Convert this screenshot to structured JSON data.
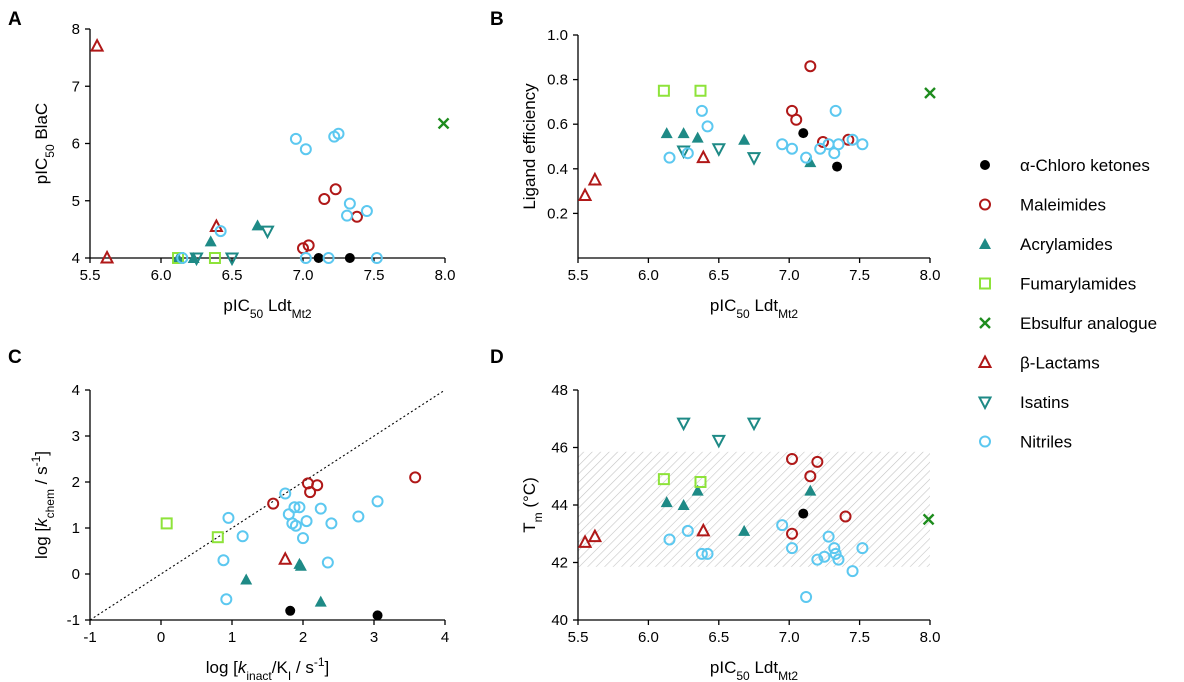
{
  "colors": {
    "chloro": "#000000",
    "maleimide": "#b01818",
    "acrylamide": "#1e8a86",
    "fumarylamide": "#8ee33a",
    "ebsulfur": "#1e8c1e",
    "lactam": "#b01818",
    "isatin": "#1e8a86",
    "nitrile": "#5cc8f0",
    "hatch": "#bdbdbd"
  },
  "legend": [
    {
      "key": "chloro",
      "label": "α-Chloro ketones",
      "marker": "filled-circle"
    },
    {
      "key": "maleimide",
      "label": "Maleimides",
      "marker": "open-circle"
    },
    {
      "key": "acrylamide",
      "label": "Acrylamides",
      "marker": "filled-triangle"
    },
    {
      "key": "fumarylamide",
      "label": "Fumarylamides",
      "marker": "open-square"
    },
    {
      "key": "ebsulfur",
      "label": "Ebsulfur analogue",
      "marker": "cross"
    },
    {
      "key": "lactam",
      "label": "β-Lactams",
      "marker": "open-triangle"
    },
    {
      "key": "isatin",
      "label": "Isatins",
      "marker": "open-triangle-down"
    },
    {
      "key": "nitrile",
      "label": "Nitriles",
      "marker": "open-circle"
    }
  ],
  "chart_data": [
    {
      "panel": "A",
      "type": "scatter",
      "xlabel_parts": [
        "pIC",
        "50",
        " Ldt",
        "Mt2"
      ],
      "ylabel_parts": [
        "pIC",
        "50",
        " BlaC"
      ],
      "xlim": [
        5.5,
        8.0
      ],
      "ylim": [
        4,
        8
      ],
      "xticks": [
        "5.5",
        "6.0",
        "6.5",
        "7.0",
        "7.5",
        "8.0"
      ],
      "yticks": [
        "4",
        "5",
        "6",
        "7",
        "8"
      ],
      "shaded_band": null,
      "diagonal": false,
      "series": [
        {
          "key": "chloro",
          "points": [
            [
              7.11,
              4.0
            ],
            [
              7.33,
              4.0
            ]
          ]
        },
        {
          "key": "maleimide",
          "points": [
            [
              7.15,
              5.03
            ],
            [
              7.23,
              5.2
            ],
            [
              7.38,
              4.72
            ],
            [
              7.0,
              4.17
            ],
            [
              7.04,
              4.22
            ]
          ]
        },
        {
          "key": "acrylamide",
          "points": [
            [
              6.12,
              4.0
            ],
            [
              6.23,
              4.0
            ],
            [
              6.35,
              4.29
            ],
            [
              6.68,
              4.57
            ]
          ]
        },
        {
          "key": "fumarylamide",
          "points": [
            [
              6.12,
              4.0
            ],
            [
              6.38,
              4.0
            ]
          ]
        },
        {
          "key": "ebsulfur",
          "points": [
            [
              7.99,
              6.35
            ]
          ]
        },
        {
          "key": "lactam",
          "points": [
            [
              5.55,
              7.7
            ],
            [
              5.62,
              4.0
            ],
            [
              6.39,
              4.55
            ]
          ]
        },
        {
          "key": "isatin",
          "points": [
            [
              6.25,
              4.0
            ],
            [
              6.5,
              4.0
            ],
            [
              6.75,
              4.47
            ]
          ]
        },
        {
          "key": "nitrile",
          "points": [
            [
              6.95,
              6.08
            ],
            [
              7.02,
              5.9
            ],
            [
              7.22,
              6.12
            ],
            [
              7.25,
              6.17
            ],
            [
              7.33,
              4.95
            ],
            [
              7.31,
              4.74
            ],
            [
              7.45,
              4.82
            ],
            [
              6.42,
              4.47
            ],
            [
              6.15,
              4.0
            ],
            [
              7.02,
              4.0
            ],
            [
              7.18,
              4.0
            ],
            [
              7.52,
              4.0
            ]
          ]
        }
      ]
    },
    {
      "panel": "B",
      "type": "scatter",
      "xlabel_parts": [
        "pIC",
        "50",
        " Ldt",
        "Mt2"
      ],
      "ylabel_parts": [
        "Ligand efficiency",
        "",
        "",
        ""
      ],
      "xlim": [
        5.5,
        8.0
      ],
      "ylim": [
        0.0,
        1.0
      ],
      "xticks": [
        "5.5",
        "6.0",
        "6.5",
        "7.0",
        "7.5",
        "8.0"
      ],
      "yticks": [
        "0.2",
        "0.4",
        "0.6",
        "0.8",
        "1.0"
      ],
      "hide_first_ytick": true,
      "shaded_band": null,
      "diagonal": false,
      "series": [
        {
          "key": "chloro",
          "points": [
            [
              7.1,
              0.56
            ],
            [
              7.34,
              0.41
            ]
          ]
        },
        {
          "key": "maleimide",
          "points": [
            [
              7.15,
              0.86
            ],
            [
              7.02,
              0.66
            ],
            [
              7.05,
              0.62
            ],
            [
              7.24,
              0.52
            ],
            [
              7.42,
              0.53
            ]
          ]
        },
        {
          "key": "acrylamide",
          "points": [
            [
              6.13,
              0.56
            ],
            [
              6.25,
              0.56
            ],
            [
              6.35,
              0.54
            ],
            [
              6.68,
              0.53
            ],
            [
              7.15,
              0.43
            ]
          ]
        },
        {
          "key": "fumarylamide",
          "points": [
            [
              6.11,
              0.75
            ],
            [
              6.37,
              0.75
            ]
          ]
        },
        {
          "key": "ebsulfur",
          "points": [
            [
              8.0,
              0.74
            ]
          ]
        },
        {
          "key": "lactam",
          "points": [
            [
              5.55,
              0.28
            ],
            [
              5.62,
              0.35
            ],
            [
              6.39,
              0.45
            ]
          ]
        },
        {
          "key": "isatin",
          "points": [
            [
              6.25,
              0.48
            ],
            [
              6.5,
              0.49
            ],
            [
              6.75,
              0.45
            ]
          ]
        },
        {
          "key": "nitrile",
          "points": [
            [
              6.15,
              0.45
            ],
            [
              6.28,
              0.47
            ],
            [
              6.38,
              0.66
            ],
            [
              6.42,
              0.59
            ],
            [
              6.95,
              0.51
            ],
            [
              7.02,
              0.49
            ],
            [
              7.12,
              0.45
            ],
            [
              7.22,
              0.49
            ],
            [
              7.28,
              0.51
            ],
            [
              7.32,
              0.47
            ],
            [
              7.33,
              0.66
            ],
            [
              7.35,
              0.51
            ],
            [
              7.45,
              0.53
            ],
            [
              7.52,
              0.51
            ]
          ]
        }
      ]
    },
    {
      "panel": "C",
      "type": "scatter",
      "xlabel_parts": [
        "log [",
        "k",
        "inact",
        "/K",
        "I",
        " / s",
        "-1",
        "]"
      ],
      "ylabel_parts": [
        "log [",
        "k",
        "chem",
        " / s",
        "-1",
        "]"
      ],
      "xlim": [
        -1,
        4
      ],
      "ylim": [
        -1,
        4
      ],
      "xticks": [
        "-1",
        "0",
        "1",
        "2",
        "3",
        "4"
      ],
      "yticks": [
        "-1",
        "0",
        "1",
        "2",
        "3",
        "4"
      ],
      "shaded_band": null,
      "diagonal": true,
      "series": [
        {
          "key": "chloro",
          "points": [
            [
              1.82,
              -0.8
            ],
            [
              3.05,
              -0.9
            ]
          ]
        },
        {
          "key": "maleimide",
          "points": [
            [
              1.58,
              1.53
            ],
            [
              2.07,
              1.97
            ],
            [
              2.1,
              1.78
            ],
            [
              2.2,
              1.93
            ],
            [
              3.58,
              2.1
            ]
          ]
        },
        {
          "key": "acrylamide",
          "points": [
            [
              1.2,
              -0.12
            ],
            [
              1.95,
              0.22
            ],
            [
              1.97,
              0.18
            ],
            [
              2.25,
              -0.6
            ]
          ]
        },
        {
          "key": "fumarylamide",
          "points": [
            [
              0.08,
              1.1
            ],
            [
              0.8,
              0.8
            ]
          ]
        },
        {
          "key": "ebsulfur",
          "points": []
        },
        {
          "key": "lactam",
          "points": [
            [
              1.75,
              0.32
            ]
          ]
        },
        {
          "key": "isatin",
          "points": []
        },
        {
          "key": "nitrile",
          "points": [
            [
              0.88,
              0.3
            ],
            [
              0.95,
              1.22
            ],
            [
              1.15,
              0.82
            ],
            [
              0.92,
              -0.55
            ],
            [
              1.75,
              1.75
            ],
            [
              1.8,
              1.3
            ],
            [
              1.85,
              1.1
            ],
            [
              1.88,
              1.45
            ],
            [
              1.9,
              1.05
            ],
            [
              1.95,
              1.45
            ],
            [
              2.0,
              0.78
            ],
            [
              2.05,
              1.15
            ],
            [
              2.25,
              1.42
            ],
            [
              2.35,
              0.25
            ],
            [
              2.4,
              1.1
            ],
            [
              2.78,
              1.25
            ],
            [
              3.05,
              1.58
            ]
          ]
        }
      ]
    },
    {
      "panel": "D",
      "type": "scatter",
      "xlabel_parts": [
        "pIC",
        "50",
        " Ldt",
        "Mt2"
      ],
      "ylabel_parts": [
        "T",
        "m",
        " (°C)"
      ],
      "xlim": [
        5.5,
        8.0
      ],
      "ylim": [
        40,
        48
      ],
      "xticks": [
        "5.5",
        "6.0",
        "6.5",
        "7.0",
        "7.5",
        "8.0"
      ],
      "yticks": [
        "40",
        "42",
        "44",
        "46",
        "48"
      ],
      "shaded_band": [
        41.85,
        45.85
      ],
      "diagonal": false,
      "series": [
        {
          "key": "chloro",
          "points": [
            [
              7.1,
              43.7
            ]
          ]
        },
        {
          "key": "maleimide",
          "points": [
            [
              7.02,
              45.6
            ],
            [
              7.2,
              45.5
            ],
            [
              7.15,
              45.0
            ],
            [
              7.4,
              43.6
            ],
            [
              7.02,
              43.0
            ]
          ]
        },
        {
          "key": "acrylamide",
          "points": [
            [
              6.13,
              44.1
            ],
            [
              6.25,
              44.0
            ],
            [
              6.35,
              44.5
            ],
            [
              6.68,
              43.1
            ],
            [
              7.15,
              44.5
            ]
          ]
        },
        {
          "key": "fumarylamide",
          "points": [
            [
              6.11,
              44.9
            ],
            [
              6.37,
              44.8
            ]
          ]
        },
        {
          "key": "ebsulfur",
          "points": [
            [
              7.99,
              43.5
            ]
          ]
        },
        {
          "key": "lactam",
          "points": [
            [
              5.55,
              42.7
            ],
            [
              5.62,
              42.9
            ],
            [
              6.39,
              43.1
            ]
          ]
        },
        {
          "key": "isatin",
          "points": [
            [
              6.25,
              46.85
            ],
            [
              6.5,
              46.25
            ],
            [
              6.75,
              46.85
            ]
          ]
        },
        {
          "key": "nitrile",
          "points": [
            [
              6.15,
              42.8
            ],
            [
              6.28,
              43.1
            ],
            [
              6.38,
              42.3
            ],
            [
              6.42,
              42.3
            ],
            [
              6.95,
              43.3
            ],
            [
              7.02,
              42.5
            ],
            [
              7.12,
              40.8
            ],
            [
              7.2,
              42.1
            ],
            [
              7.25,
              42.2
            ],
            [
              7.28,
              42.9
            ],
            [
              7.32,
              42.5
            ],
            [
              7.33,
              42.3
            ],
            [
              7.35,
              42.1
            ],
            [
              7.45,
              41.7
            ],
            [
              7.52,
              42.5
            ]
          ]
        }
      ]
    }
  ]
}
